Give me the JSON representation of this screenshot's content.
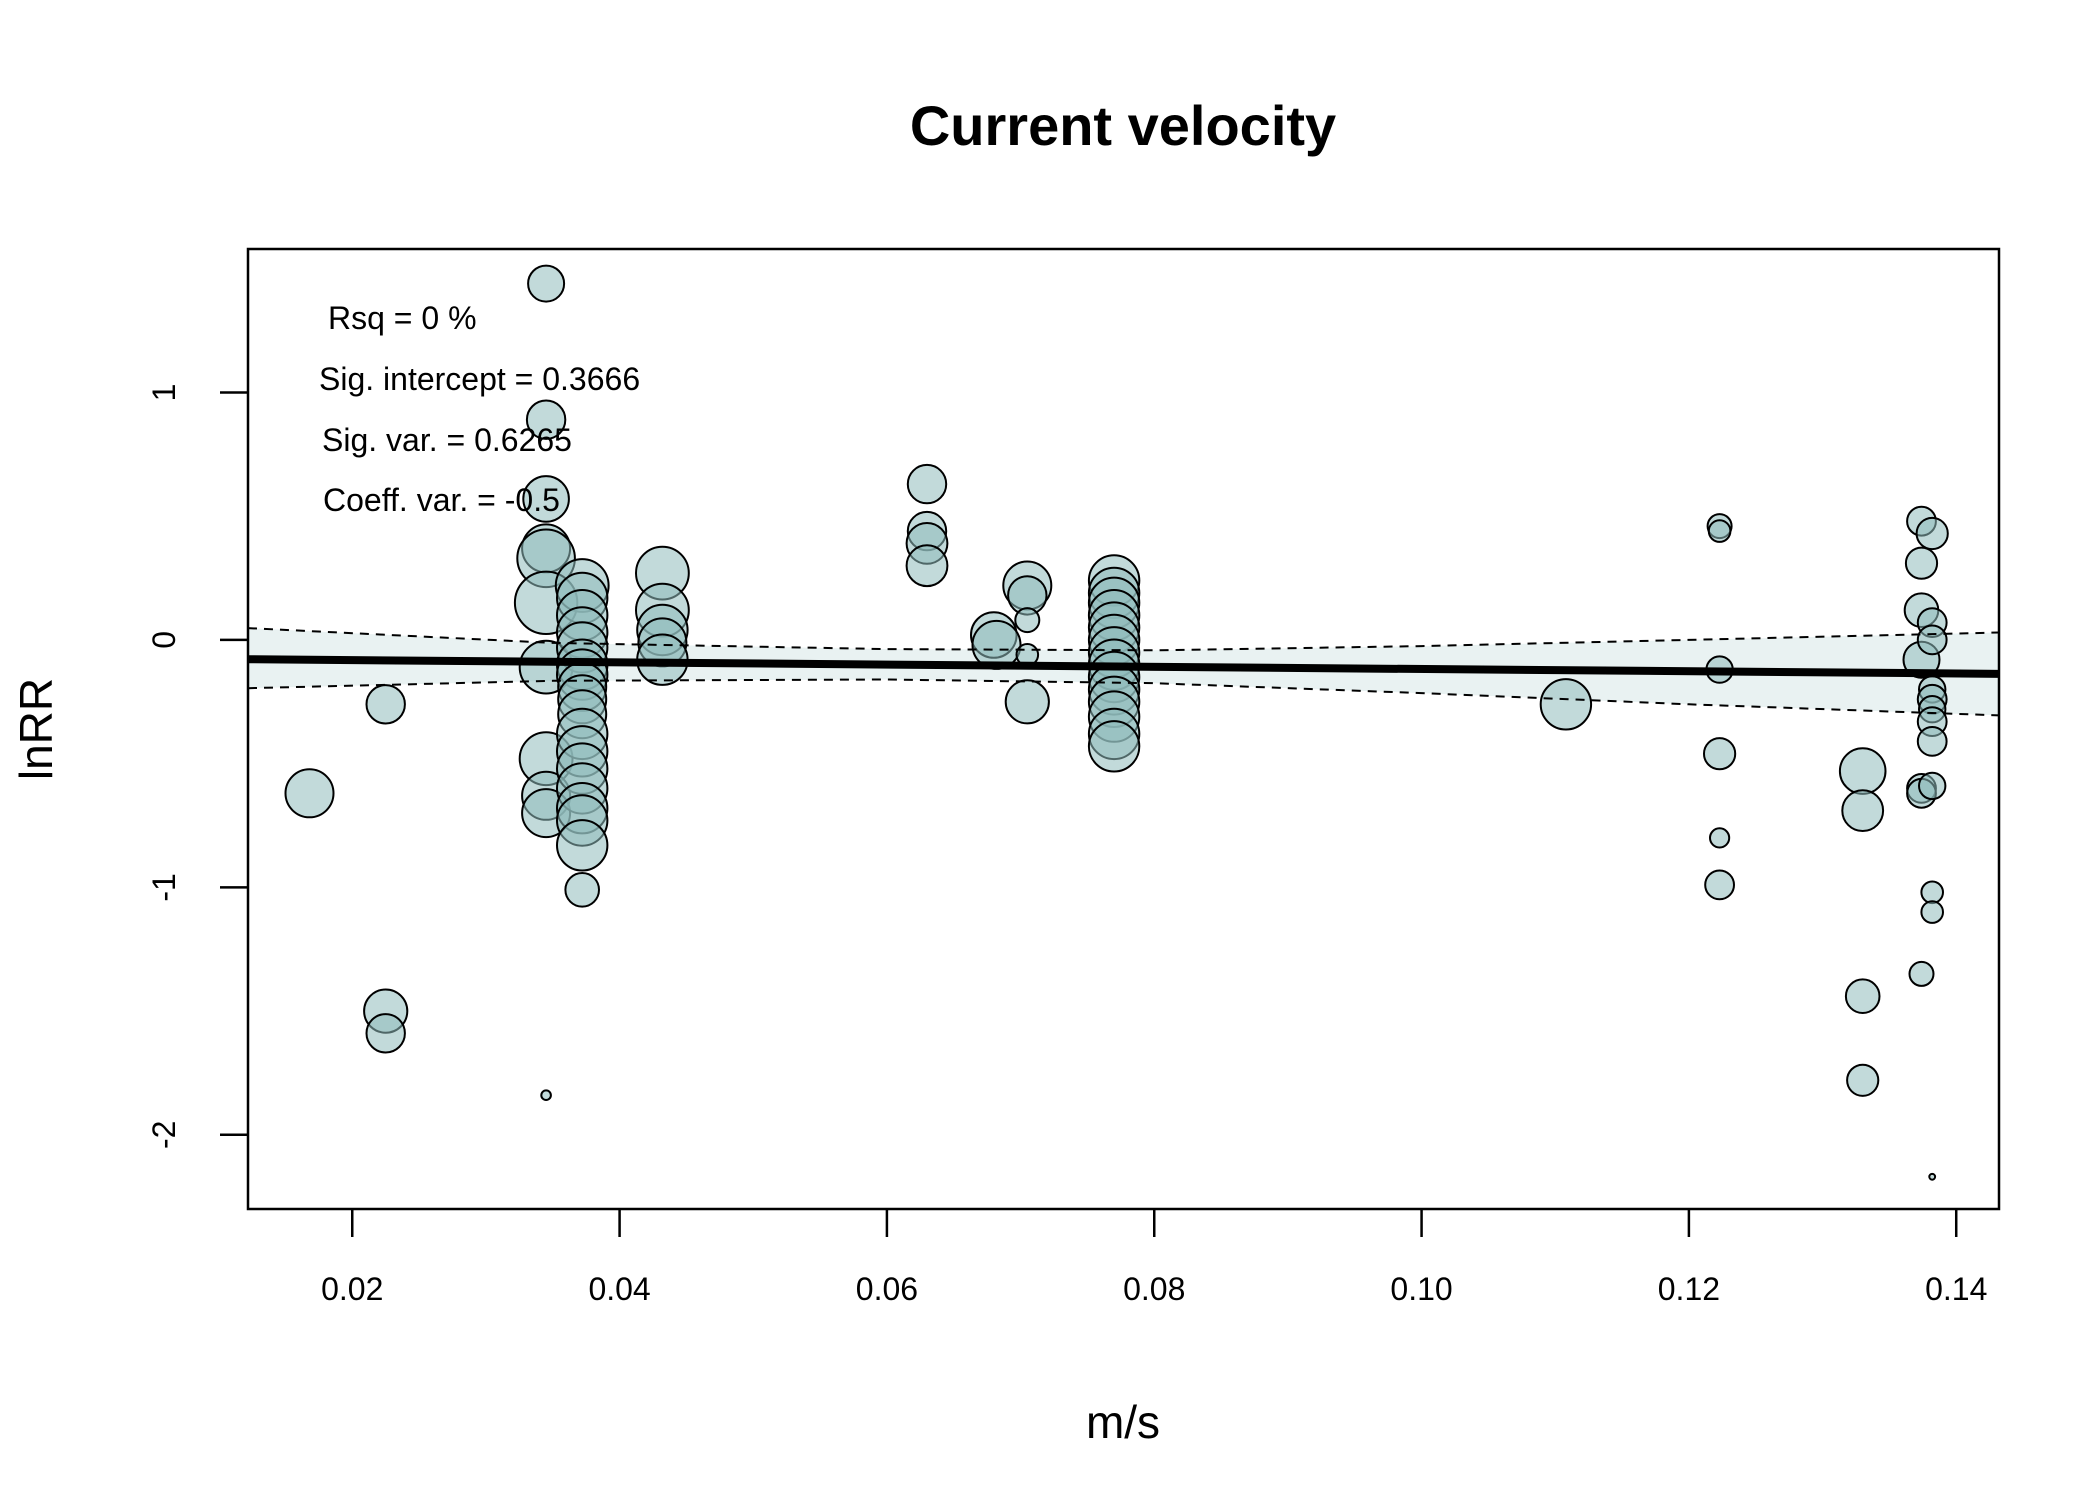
{
  "chart_data": {
    "type": "scatter",
    "title": "Current velocity",
    "xlabel": "m/s",
    "ylabel": "lnRR",
    "xlim": [
      0.0122,
      0.1432
    ],
    "ylim": [
      -2.3,
      1.58
    ],
    "x_ticks": [
      0.02,
      0.04,
      0.06,
      0.08,
      0.1,
      0.12,
      0.14
    ],
    "x_tick_labels": [
      "0.02",
      "0.04",
      "0.06",
      "0.08",
      "0.10",
      "0.12",
      "0.14"
    ],
    "y_ticks": [
      -2,
      -1,
      0,
      1
    ],
    "y_tick_labels": [
      "-2",
      "-1",
      "0",
      "1"
    ],
    "grid": false,
    "legend": "none",
    "annotations": [
      {
        "text": "Rsq = 0 %"
      },
      {
        "text": "Sig. intercept = 0.3666"
      },
      {
        "text": "Sig. var. = 0.6265"
      },
      {
        "text": "Coeff. var. = -0.5"
      }
    ],
    "colors": {
      "point_fill": "#8fbcbc",
      "point_stroke": "#000000",
      "ci_band": "#e9f2f2",
      "regression_line": "#000000"
    },
    "regression": {
      "x": [
        0.0122,
        0.1432
      ],
      "y": [
        -0.078,
        -0.137
      ]
    },
    "ci_upper": {
      "x": [
        0.0122,
        0.035,
        0.06,
        0.08,
        0.1,
        0.12,
        0.1432
      ],
      "y": [
        0.048,
        -0.012,
        -0.037,
        -0.042,
        -0.025,
        0.0,
        0.03
      ]
    },
    "ci_lower": {
      "x": [
        0.0122,
        0.035,
        0.06,
        0.08,
        0.1,
        0.12,
        0.1432
      ],
      "y": [
        -0.195,
        -0.165,
        -0.16,
        -0.175,
        -0.215,
        -0.26,
        -0.305
      ]
    },
    "points": [
      {
        "x": 0.0168,
        "y": -0.62,
        "size": 1.0
      },
      {
        "x": 0.0225,
        "y": -0.26,
        "size": 0.8
      },
      {
        "x": 0.0225,
        "y": -1.5,
        "size": 0.9
      },
      {
        "x": 0.0225,
        "y": -1.59,
        "size": 0.8
      },
      {
        "x": 0.0345,
        "y": 1.44,
        "size": 0.75
      },
      {
        "x": 0.0345,
        "y": 0.89,
        "size": 0.8
      },
      {
        "x": 0.0345,
        "y": 0.57,
        "size": 0.95
      },
      {
        "x": 0.0345,
        "y": 0.37,
        "size": 1.0
      },
      {
        "x": 0.0345,
        "y": 0.33,
        "size": 1.2
      },
      {
        "x": 0.0345,
        "y": 0.15,
        "size": 1.3
      },
      {
        "x": 0.0345,
        "y": -0.11,
        "size": 1.1
      },
      {
        "x": 0.0345,
        "y": -0.48,
        "size": 1.1
      },
      {
        "x": 0.0345,
        "y": -0.63,
        "size": 1.0
      },
      {
        "x": 0.0345,
        "y": -0.7,
        "size": 1.0
      },
      {
        "x": 0.0345,
        "y": -1.84,
        "size": 0.2
      },
      {
        "x": 0.0372,
        "y": 0.22,
        "size": 1.1
      },
      {
        "x": 0.0372,
        "y": 0.17,
        "size": 1.05
      },
      {
        "x": 0.0372,
        "y": 0.1,
        "size": 1.05
      },
      {
        "x": 0.0372,
        "y": 0.03,
        "size": 1.05
      },
      {
        "x": 0.0372,
        "y": -0.03,
        "size": 1.05
      },
      {
        "x": 0.0372,
        "y": -0.1,
        "size": 1.05
      },
      {
        "x": 0.0372,
        "y": -0.14,
        "size": 1.05
      },
      {
        "x": 0.0372,
        "y": -0.19,
        "size": 1.0
      },
      {
        "x": 0.0372,
        "y": -0.24,
        "size": 1.0
      },
      {
        "x": 0.0372,
        "y": -0.3,
        "size": 1.0
      },
      {
        "x": 0.0372,
        "y": -0.38,
        "size": 1.05
      },
      {
        "x": 0.0372,
        "y": -0.45,
        "size": 1.05
      },
      {
        "x": 0.0372,
        "y": -0.52,
        "size": 1.05
      },
      {
        "x": 0.0372,
        "y": -0.6,
        "size": 1.05
      },
      {
        "x": 0.0372,
        "y": -0.68,
        "size": 1.05
      },
      {
        "x": 0.0372,
        "y": -0.73,
        "size": 1.05
      },
      {
        "x": 0.0372,
        "y": -0.83,
        "size": 1.05
      },
      {
        "x": 0.0372,
        "y": -1.01,
        "size": 0.7
      },
      {
        "x": 0.0432,
        "y": 0.27,
        "size": 1.1
      },
      {
        "x": 0.0432,
        "y": 0.12,
        "size": 1.1
      },
      {
        "x": 0.0432,
        "y": 0.04,
        "size": 1.05
      },
      {
        "x": 0.0432,
        "y": -0.01,
        "size": 1.0
      },
      {
        "x": 0.0432,
        "y": -0.08,
        "size": 1.05
      },
      {
        "x": 0.063,
        "y": 0.63,
        "size": 0.8
      },
      {
        "x": 0.063,
        "y": 0.44,
        "size": 0.8
      },
      {
        "x": 0.063,
        "y": 0.39,
        "size": 0.85
      },
      {
        "x": 0.063,
        "y": 0.3,
        "size": 0.85
      },
      {
        "x": 0.068,
        "y": 0.02,
        "size": 0.95
      },
      {
        "x": 0.0682,
        "y": -0.02,
        "size": 1.0
      },
      {
        "x": 0.0705,
        "y": 0.22,
        "size": 1.0
      },
      {
        "x": 0.0705,
        "y": 0.18,
        "size": 0.8
      },
      {
        "x": 0.0705,
        "y": 0.08,
        "size": 0.5
      },
      {
        "x": 0.0705,
        "y": -0.06,
        "size": 0.45
      },
      {
        "x": 0.0705,
        "y": -0.25,
        "size": 0.9
      },
      {
        "x": 0.077,
        "y": 0.24,
        "size": 1.05
      },
      {
        "x": 0.077,
        "y": 0.19,
        "size": 1.05
      },
      {
        "x": 0.077,
        "y": 0.15,
        "size": 1.05
      },
      {
        "x": 0.077,
        "y": 0.1,
        "size": 1.05
      },
      {
        "x": 0.077,
        "y": 0.05,
        "size": 1.05
      },
      {
        "x": 0.077,
        "y": 0.0,
        "size": 1.05
      },
      {
        "x": 0.077,
        "y": -0.05,
        "size": 1.05
      },
      {
        "x": 0.077,
        "y": -0.1,
        "size": 1.05
      },
      {
        "x": 0.077,
        "y": -0.15,
        "size": 1.05
      },
      {
        "x": 0.077,
        "y": -0.2,
        "size": 1.05
      },
      {
        "x": 0.077,
        "y": -0.25,
        "size": 1.05
      },
      {
        "x": 0.077,
        "y": -0.31,
        "size": 1.05
      },
      {
        "x": 0.077,
        "y": -0.38,
        "size": 1.05
      },
      {
        "x": 0.077,
        "y": -0.43,
        "size": 1.05
      },
      {
        "x": 0.1108,
        "y": -0.26,
        "size": 1.05
      },
      {
        "x": 0.1223,
        "y": 0.46,
        "size": 0.5
      },
      {
        "x": 0.1223,
        "y": 0.44,
        "size": 0.45
      },
      {
        "x": 0.1223,
        "y": -0.12,
        "size": 0.55
      },
      {
        "x": 0.1223,
        "y": -0.46,
        "size": 0.65
      },
      {
        "x": 0.1223,
        "y": -0.8,
        "size": 0.4
      },
      {
        "x": 0.1223,
        "y": -0.99,
        "size": 0.6
      },
      {
        "x": 0.133,
        "y": -0.53,
        "size": 0.95
      },
      {
        "x": 0.133,
        "y": -0.69,
        "size": 0.85
      },
      {
        "x": 0.133,
        "y": -1.44,
        "size": 0.7
      },
      {
        "x": 0.133,
        "y": -1.78,
        "size": 0.65
      },
      {
        "x": 0.1374,
        "y": 0.48,
        "size": 0.6
      },
      {
        "x": 0.1374,
        "y": 0.31,
        "size": 0.65
      },
      {
        "x": 0.1374,
        "y": 0.12,
        "size": 0.7
      },
      {
        "x": 0.1374,
        "y": -0.08,
        "size": 0.75
      },
      {
        "x": 0.1374,
        "y": -0.6,
        "size": 0.6
      },
      {
        "x": 0.1374,
        "y": -0.62,
        "size": 0.6
      },
      {
        "x": 0.1374,
        "y": -1.35,
        "size": 0.5
      },
      {
        "x": 0.1382,
        "y": 0.43,
        "size": 0.65
      },
      {
        "x": 0.1382,
        "y": 0.07,
        "size": 0.6
      },
      {
        "x": 0.1382,
        "y": 0.0,
        "size": 0.6
      },
      {
        "x": 0.1382,
        "y": -0.2,
        "size": 0.55
      },
      {
        "x": 0.1382,
        "y": -0.24,
        "size": 0.6
      },
      {
        "x": 0.1382,
        "y": -0.28,
        "size": 0.55
      },
      {
        "x": 0.1382,
        "y": -0.33,
        "size": 0.6
      },
      {
        "x": 0.1382,
        "y": -0.41,
        "size": 0.6
      },
      {
        "x": 0.1382,
        "y": -0.59,
        "size": 0.55
      },
      {
        "x": 0.1382,
        "y": -1.02,
        "size": 0.45
      },
      {
        "x": 0.1382,
        "y": -1.1,
        "size": 0.45
      },
      {
        "x": 0.1382,
        "y": -2.17,
        "size": 0.12
      }
    ]
  }
}
